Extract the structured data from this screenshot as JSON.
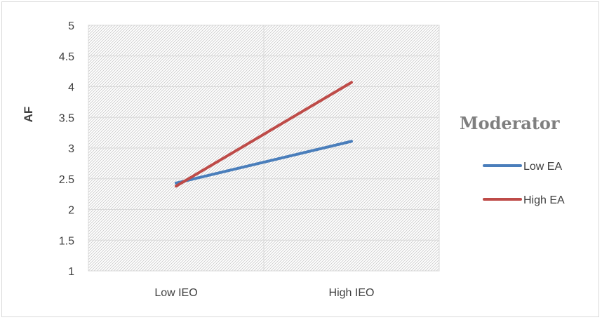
{
  "chart_data": {
    "type": "line",
    "title": "",
    "xlabel": "",
    "ylabel": "AF",
    "categories": [
      "Low IEO",
      "High IEO"
    ],
    "ylim": [
      1,
      5
    ],
    "yticks": [
      1,
      1.5,
      2,
      2.5,
      3,
      3.5,
      4,
      4.5,
      5
    ],
    "ytick_labels": [
      "1",
      "1.5",
      "2",
      "2.5",
      "3",
      "3.5",
      "4",
      "4.5",
      "5"
    ],
    "grid": true,
    "legend": {
      "title": "Moderator",
      "placement": "right"
    },
    "series": [
      {
        "name": "Low EA",
        "values": [
          2.43,
          3.11
        ],
        "color": "#4a7ebb"
      },
      {
        "name": "High EA",
        "values": [
          2.38,
          4.07
        ],
        "color": "#be4b48"
      }
    ]
  }
}
